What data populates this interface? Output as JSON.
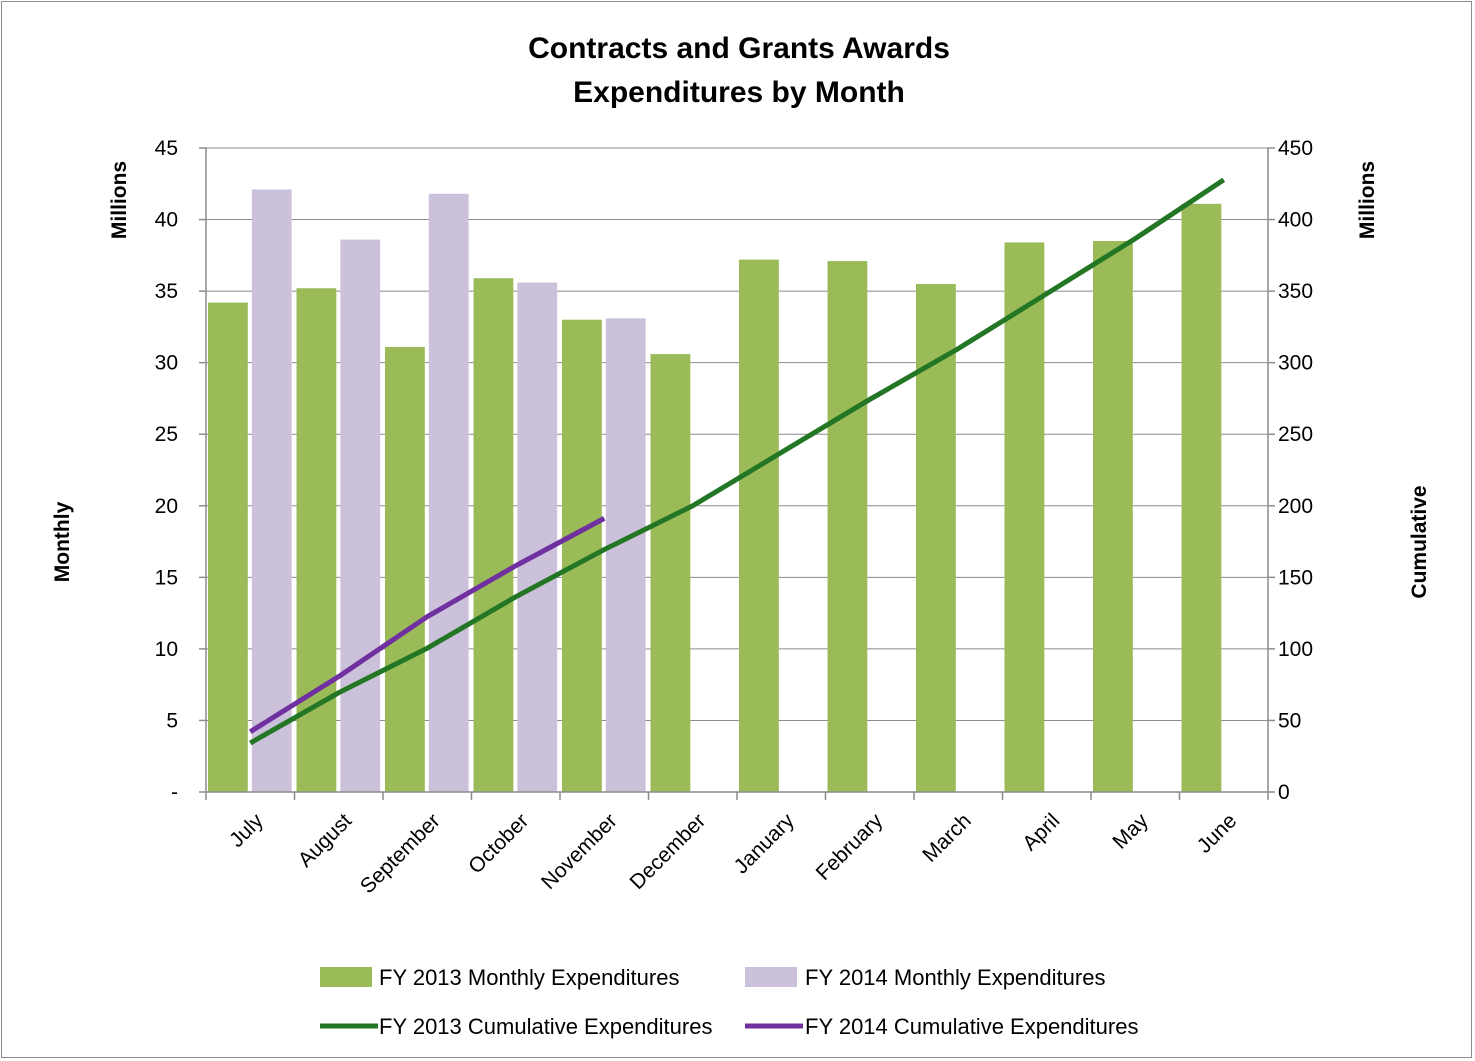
{
  "chart_data": {
    "type": "bar",
    "title": [
      "Contracts and Grants Awards",
      "Expenditures by Month"
    ],
    "categories": [
      "July",
      "August",
      "September",
      "October",
      "November",
      "December",
      "January",
      "February",
      "March",
      "April",
      "May",
      "June"
    ],
    "y_left": {
      "label": "Monthly",
      "unit_label": "Millions",
      "range": [
        0,
        45
      ],
      "ticks": [
        "-",
        "5",
        "10",
        "15",
        "20",
        "25",
        "30",
        "35",
        "40",
        "45"
      ]
    },
    "y_right": {
      "label": "Cumulative",
      "unit_label": "Millions",
      "range": [
        0,
        450
      ],
      "ticks": [
        "0",
        "50",
        "100",
        "150",
        "200",
        "250",
        "300",
        "350",
        "400",
        "450"
      ]
    },
    "grid": true,
    "legend_position": "bottom",
    "series": [
      {
        "name": "FY 2013 Monthly Expenditures",
        "kind": "bar",
        "axis": "left",
        "color": "#9bbb59",
        "values": [
          34.2,
          35.2,
          31.1,
          35.9,
          33.0,
          30.6,
          37.2,
          37.1,
          35.5,
          38.4,
          38.5,
          41.1
        ]
      },
      {
        "name": "FY 2014 Monthly Expenditures",
        "kind": "bar",
        "axis": "left",
        "color": "#ccc1da",
        "values": [
          42.1,
          38.6,
          41.8,
          35.6,
          33.1,
          null,
          null,
          null,
          null,
          null,
          null,
          null
        ]
      },
      {
        "name": "FY 2013 Cumulative Expenditures",
        "kind": "line",
        "axis": "right",
        "color": "#237623",
        "values": [
          34.2,
          69.4,
          100.5,
          136.4,
          169.4,
          200.0,
          237.2,
          274.3,
          309.8,
          348.2,
          386.7,
          427.8
        ]
      },
      {
        "name": "FY 2014 Cumulative Expenditures",
        "kind": "line",
        "axis": "right",
        "color": "#7030a0",
        "values": [
          42.1,
          80.7,
          122.5,
          158.1,
          191.2,
          null,
          null,
          null,
          null,
          null,
          null,
          null
        ]
      }
    ]
  }
}
